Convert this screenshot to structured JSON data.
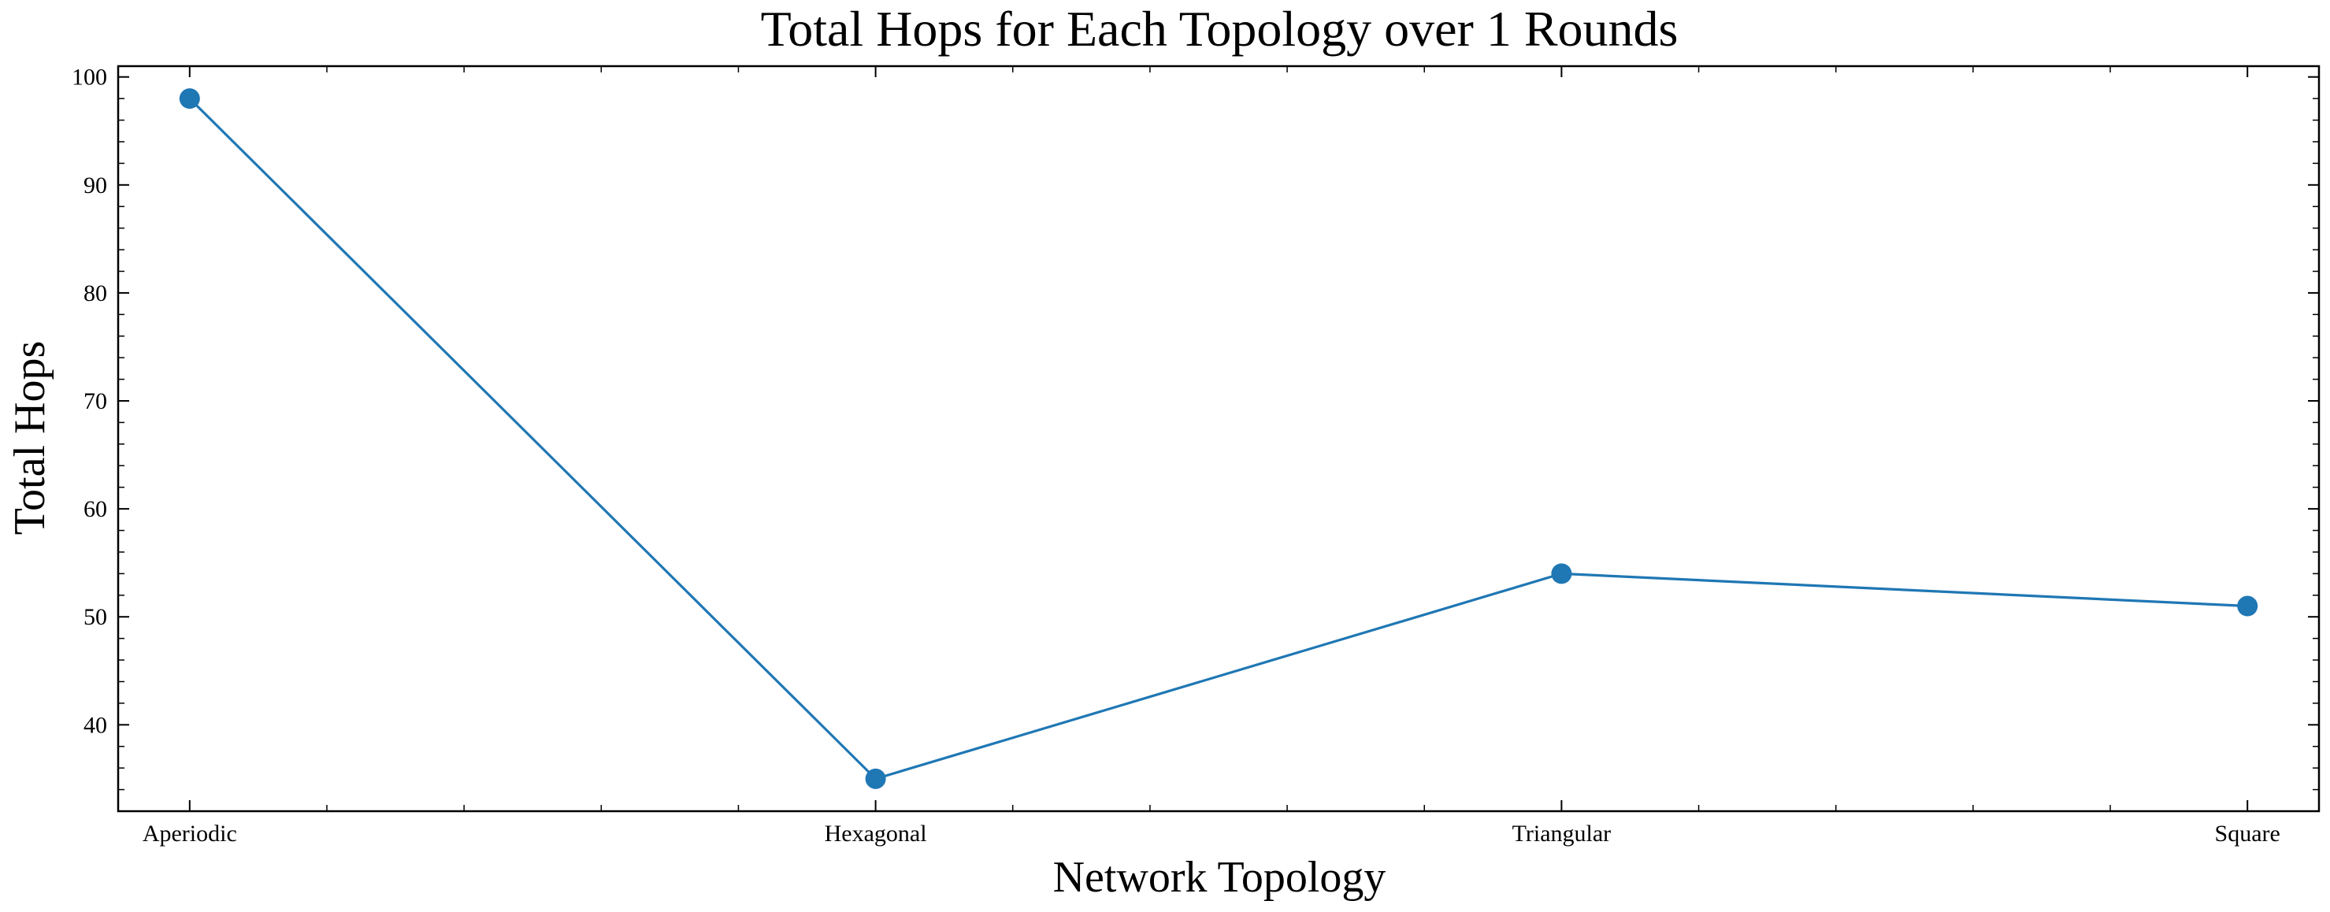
{
  "chart_data": {
    "type": "line",
    "title": "Total Hops for Each Topology over 1 Rounds",
    "xlabel": "Network Topology",
    "ylabel": "Total Hops",
    "categories": [
      "Aperiodic",
      "Hexagonal",
      "Triangular",
      "Square"
    ],
    "series": [
      {
        "values": [
          98,
          35,
          54,
          51
        ],
        "color": "#1f77b4",
        "marker": "circle"
      }
    ],
    "ylim": [
      32,
      101
    ],
    "yticks": [
      40,
      50,
      60,
      70,
      80,
      90,
      100
    ],
    "grid": false,
    "legend": "none"
  }
}
